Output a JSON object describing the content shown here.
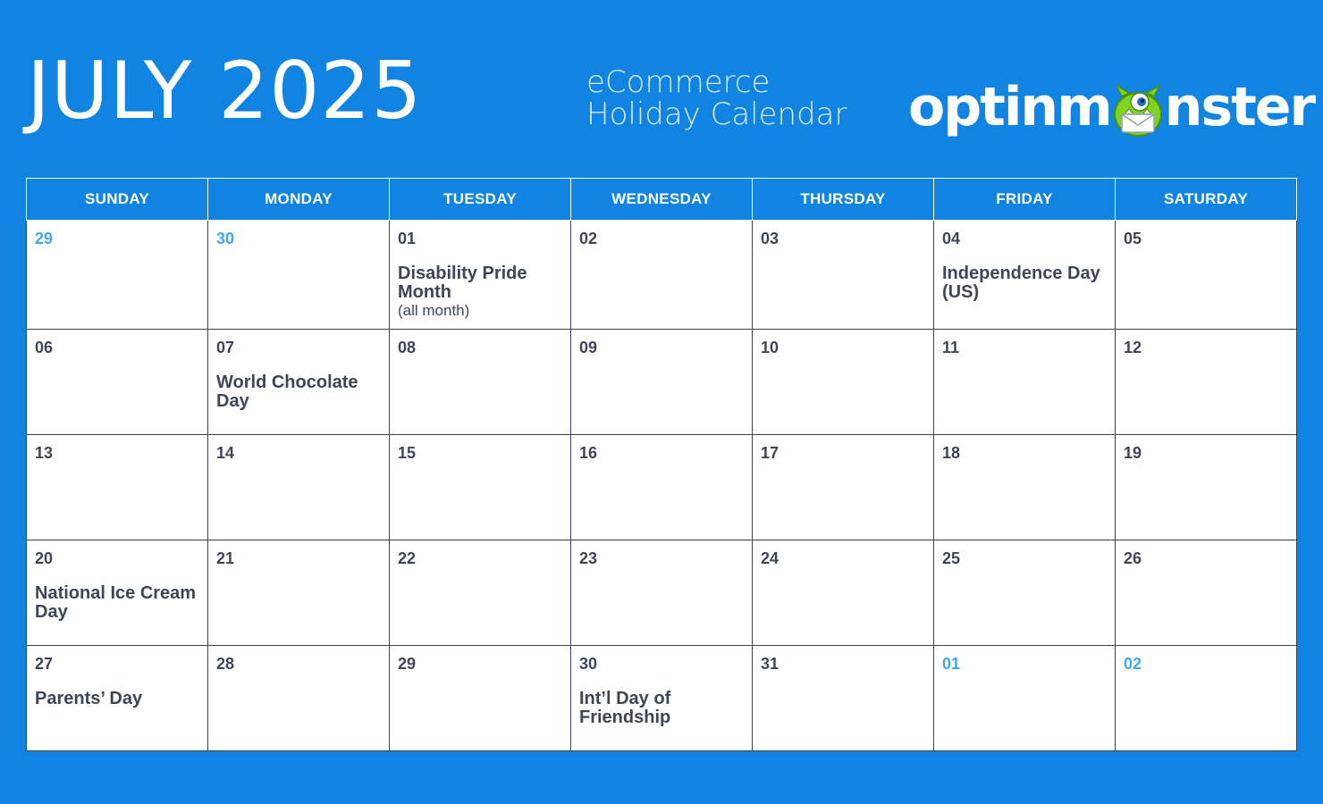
{
  "header": {
    "month_title": "JULY 2025",
    "subtitle_line1": "eCommerce",
    "subtitle_line2": "Holiday Calendar",
    "logo_text_left": "optinm",
    "logo_text_right": "nster",
    "logo_mascot_icon": "green-monster-mascot-icon"
  },
  "colors": {
    "background": "#1183e0",
    "cell_background": "#ffffff",
    "text_dark": "#3e4556",
    "muted_day": "#40a9ee"
  },
  "weekdays": [
    "SUNDAY",
    "MONDAY",
    "TUESDAY",
    "WEDNESDAY",
    "THURSDAY",
    "FRIDAY",
    "SATURDAY"
  ],
  "weeks": [
    [
      {
        "day": "29",
        "muted": true
      },
      {
        "day": "30",
        "muted": true
      },
      {
        "day": "01",
        "event": "Disability Pride Month",
        "note": "(all month)"
      },
      {
        "day": "02"
      },
      {
        "day": "03"
      },
      {
        "day": "04",
        "event": "Independence Day (US)"
      },
      {
        "day": "05"
      }
    ],
    [
      {
        "day": "06"
      },
      {
        "day": "07",
        "event": "World Chocolate Day"
      },
      {
        "day": "08"
      },
      {
        "day": "09"
      },
      {
        "day": "10"
      },
      {
        "day": "11"
      },
      {
        "day": "12"
      }
    ],
    [
      {
        "day": "13"
      },
      {
        "day": "14"
      },
      {
        "day": "15"
      },
      {
        "day": "16"
      },
      {
        "day": "17"
      },
      {
        "day": "18"
      },
      {
        "day": "19"
      }
    ],
    [
      {
        "day": "20",
        "event": "National Ice Cream Day"
      },
      {
        "day": "21"
      },
      {
        "day": "22"
      },
      {
        "day": "23"
      },
      {
        "day": "24"
      },
      {
        "day": "25"
      },
      {
        "day": "26"
      }
    ],
    [
      {
        "day": "27",
        "event": "Parents’ Day"
      },
      {
        "day": "28"
      },
      {
        "day": "29"
      },
      {
        "day": "30",
        "event": "Int’l Day of Friendship"
      },
      {
        "day": "31"
      },
      {
        "day": "01",
        "muted": true
      },
      {
        "day": "02",
        "muted": true
      }
    ]
  ]
}
